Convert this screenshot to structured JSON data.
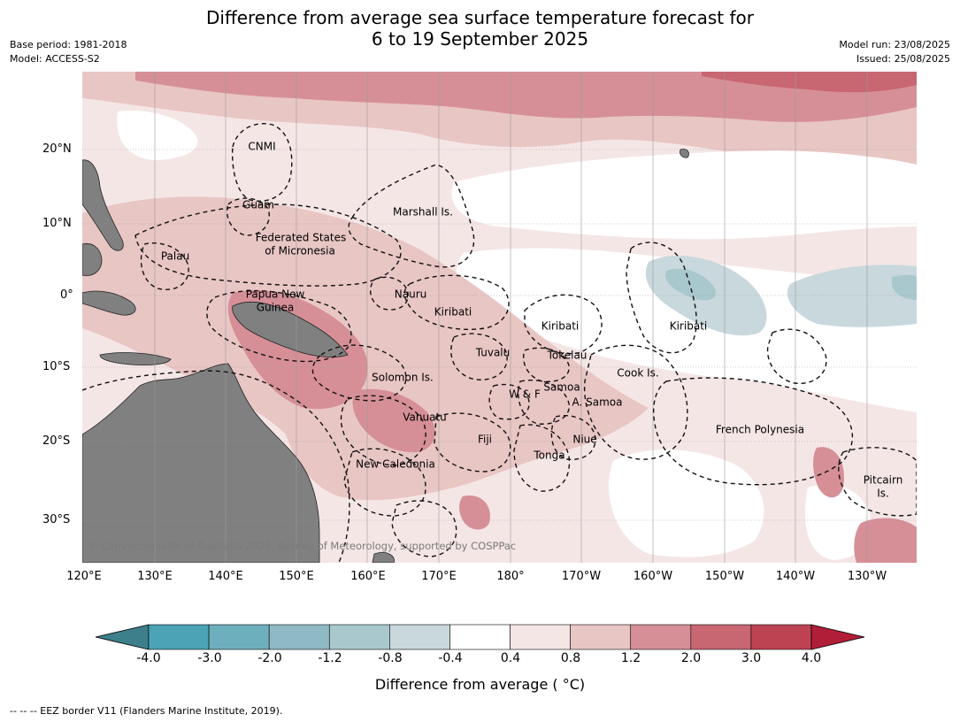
{
  "header": {
    "title_line1": "Difference from average sea surface temperature forecast for",
    "title_line2": "6 to 19 September 2025",
    "base_period": "Base period: 1981-2018",
    "model": "Model: ACCESS-S2",
    "model_run": "Model run: 23/08/2025",
    "issued": "Issued: 25/08/2025"
  },
  "map": {
    "latitude_labels": [
      "20°N",
      "10°N",
      "0°",
      "10°S",
      "20°S",
      "30°S"
    ],
    "longitude_labels": [
      "120°E",
      "130°E",
      "140°E",
      "150°E",
      "160°E",
      "170°E",
      "180°",
      "170°W",
      "160°W",
      "150°W",
      "140°W",
      "130°W"
    ],
    "places": {
      "cnmi": "CNMI",
      "guam": "Guam",
      "marshall": "Marshall Is.",
      "fsm_1": "Federated States",
      "fsm_2": "of Micronesia",
      "palau": "Palau",
      "png_1": "Papua New",
      "png_2": "Guinea",
      "nauru": "Nauru",
      "kiribati_west": "Kiribati",
      "kiribati_central": "Kiribati",
      "kiribati_east": "Kiribati",
      "tuvalu": "Tuvalu",
      "tokelau": "Tokelau",
      "cook": "Cook Is.",
      "solomon": "Solomon Is.",
      "samoa": "Samoa",
      "wf": "W & F",
      "asamoa": "A. Samoa",
      "vanuatu": "Vanuatu",
      "fiji": "Fiji",
      "niue": "Niue",
      "tonga": "Tonga",
      "new_caledonia": "New Caledonia",
      "french_polynesia": "French Polynesia",
      "pitcairn_1": "Pitcairn",
      "pitcairn_2": "Is."
    },
    "copyright": "© Commonwealth of Australia 2025, Bureau of Meteorology, supported by COSPPac",
    "land_color": "#808080"
  },
  "legend": {
    "ticks": [
      "-4.0",
      "-3.0",
      "-2.0",
      "-1.2",
      "-0.8",
      "-0.4",
      "0.4",
      "0.8",
      "1.2",
      "2.0",
      "3.0",
      "4.0"
    ],
    "colors": [
      "#3d7f8b",
      "#4ba3b5",
      "#6eafbd",
      "#8fb9c4",
      "#a9c8cd",
      "#c9d8dc",
      "#ffffff",
      "#f5e6e6",
      "#e8c6c4",
      "#d68f97",
      "#c86672",
      "#be4352",
      "#b11e37"
    ],
    "title": "Difference from average (°C)",
    "title_display": "Difference from average ( °C)"
  },
  "footnote": "--  --  -- EEZ border V11 (Flanders Marine Institute, 2019)."
}
